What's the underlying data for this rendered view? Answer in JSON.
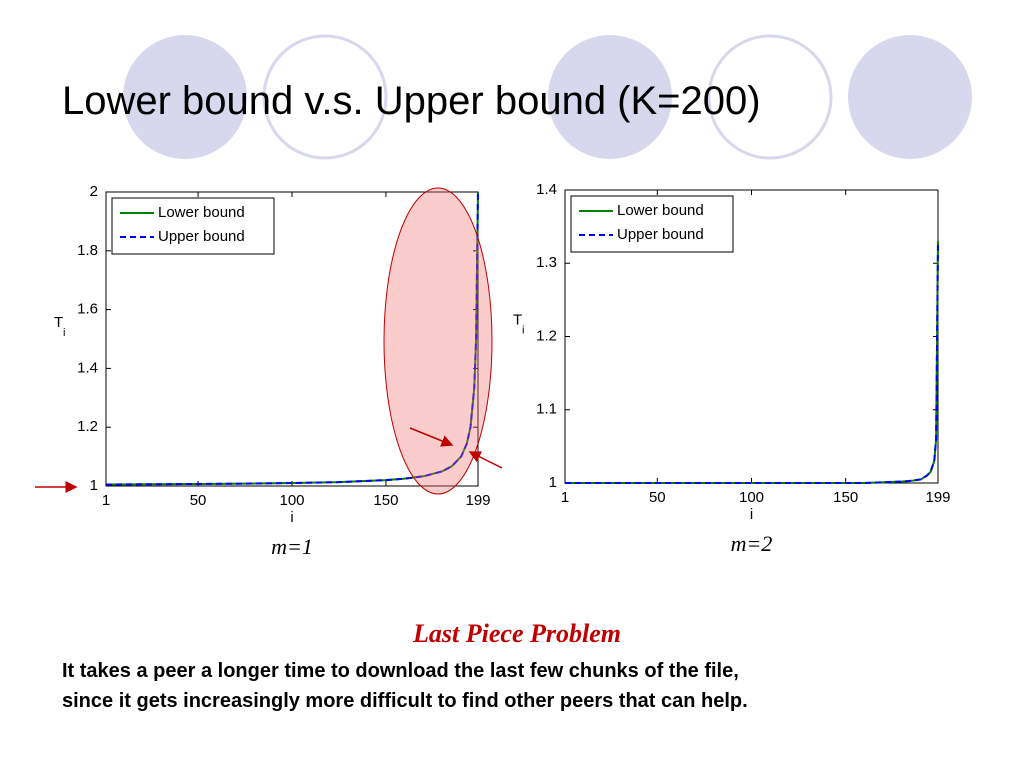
{
  "title": "Lower bound v.s. Upper bound (K=200)",
  "chart_data": [
    {
      "type": "line",
      "caption": "m=1",
      "xlabel": "i",
      "ylabel": "T",
      "ylabel_subscript": "i",
      "x": [
        1,
        25,
        50,
        75,
        100,
        125,
        150,
        160,
        170,
        180,
        185,
        190,
        193,
        195,
        197,
        198,
        199
      ],
      "xlim": [
        1,
        199
      ],
      "xticks": [
        1,
        50,
        100,
        150,
        199
      ],
      "ylim": [
        1,
        2
      ],
      "yticks": [
        1,
        1.2,
        1.4,
        1.6,
        1.8,
        2
      ],
      "legend": "upper-left",
      "series": [
        {
          "name": "Lower bound",
          "color": "#008000",
          "linestyle": "solid",
          "values": [
            1.005,
            1.006,
            1.007,
            1.008,
            1.01,
            1.013,
            1.02,
            1.025,
            1.033,
            1.05,
            1.067,
            1.1,
            1.143,
            1.2,
            1.333,
            1.5,
            2
          ]
        },
        {
          "name": "Upper bound",
          "color": "#0000ff",
          "linestyle": "dashed",
          "values": [
            1.005,
            1.006,
            1.007,
            1.008,
            1.01,
            1.013,
            1.02,
            1.025,
            1.033,
            1.05,
            1.067,
            1.1,
            1.143,
            1.2,
            1.333,
            1.5,
            2
          ]
        }
      ]
    },
    {
      "type": "line",
      "caption": "m=2",
      "xlabel": "i",
      "ylabel": "T",
      "ylabel_subscript": "i",
      "x": [
        1,
        25,
        50,
        75,
        100,
        125,
        150,
        160,
        170,
        180,
        185,
        190,
        193,
        195,
        197,
        198,
        199
      ],
      "xlim": [
        1,
        199
      ],
      "xticks": [
        1,
        50,
        100,
        150,
        199
      ],
      "ylim": [
        1,
        1.4
      ],
      "yticks": [
        1,
        1.1,
        1.2,
        1.3,
        1.4
      ],
      "legend": "upper-left",
      "series": [
        {
          "name": "Lower bound",
          "color": "#008000",
          "linestyle": "solid",
          "values": [
            1,
            1,
            1,
            1,
            1,
            1,
            1,
            1,
            1.001,
            1.002,
            1.003,
            1.005,
            1.01,
            1.015,
            1.03,
            1.06,
            1.33
          ]
        },
        {
          "name": "Upper bound",
          "color": "#0000ff",
          "linestyle": "dashed",
          "values": [
            1,
            1,
            1,
            1,
            1,
            1,
            1,
            1,
            1.001,
            1.002,
            1.003,
            1.005,
            1.01,
            1.015,
            1.03,
            1.06,
            1.33
          ]
        }
      ]
    }
  ],
  "subtitle": "Last Piece Problem",
  "body": [
    "It takes a peer a longer time to download the last few chunks of the file,",
    "since it gets increasingly more difficult to find other peers that can help."
  ]
}
